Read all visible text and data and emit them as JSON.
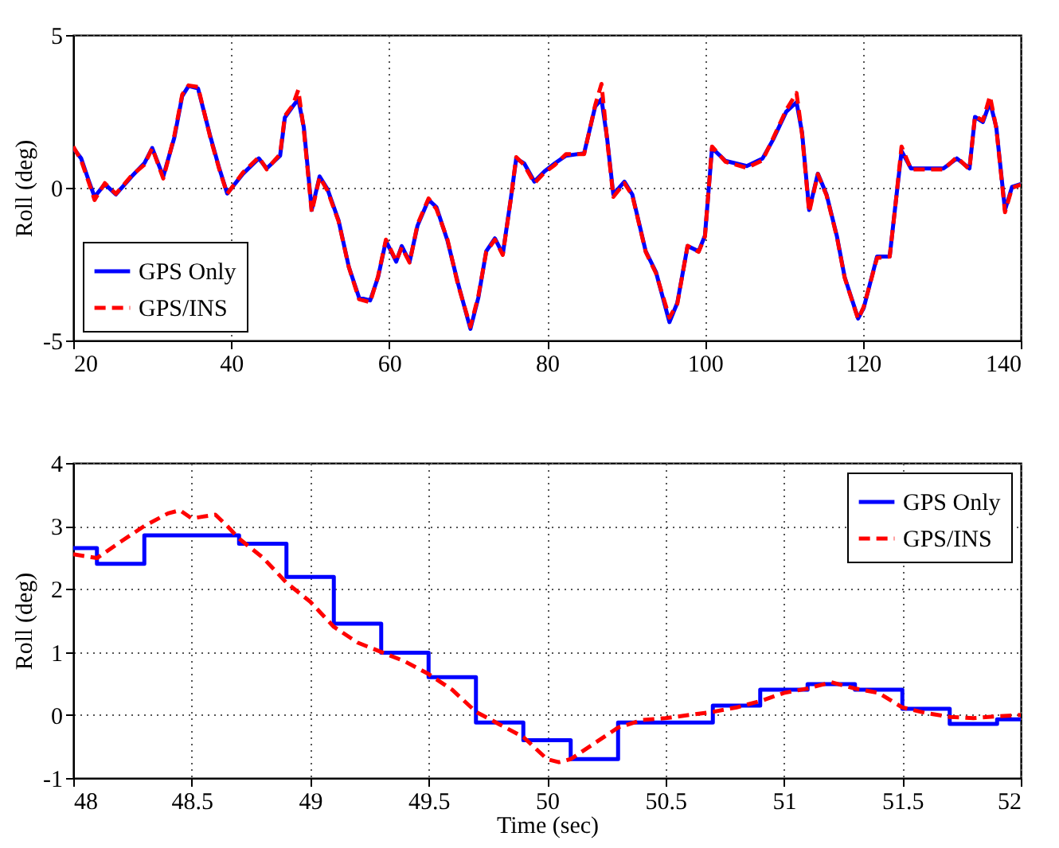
{
  "chart_data": [
    {
      "type": "line",
      "ylabel": "Roll (deg)",
      "xlim": [
        20,
        140
      ],
      "xticks": [
        20,
        40,
        60,
        80,
        100,
        120,
        140
      ],
      "ylim": [
        -5,
        5
      ],
      "yticks": [
        -5,
        0,
        5
      ],
      "grid": true,
      "legend": "bottom left",
      "x": [
        20,
        21,
        22,
        22.7,
        24,
        25.4,
        27.4,
        29,
        30,
        31.4,
        32.8,
        33.8,
        34.6,
        35.8,
        37.4,
        38.5,
        39.5,
        41.5,
        43.5,
        44.5,
        46.2,
        46.8,
        47.8,
        48.5,
        49.2,
        50.2,
        51.2,
        52.2,
        53.6,
        54.9,
        56.2,
        57.6,
        58.6,
        59.6,
        60.9,
        61.6,
        62.6,
        63.6,
        65,
        66,
        67.4,
        68.7,
        70.3,
        71.3,
        72.3,
        73.4,
        74.4,
        75.4,
        76.1,
        77.1,
        78.4,
        79.7,
        81,
        82.4,
        84.7,
        86.1,
        86.9,
        87.6,
        88.4,
        89.8,
        90.8,
        92.5,
        93.8,
        95.5,
        96.5,
        97.8,
        99.2,
        100,
        100.9,
        102.6,
        105.3,
        107.3,
        108.6,
        110.3,
        111.6,
        112.3,
        113.2,
        114.3,
        115.4,
        116.7,
        117.7,
        119.4,
        120.1,
        121.8,
        123.4,
        124.2,
        124.9,
        126.1,
        128.1,
        130.2,
        131.9,
        133.5,
        134.2,
        135.2,
        136.1,
        136.9,
        138,
        138.9,
        140
      ],
      "series": [
        {
          "name": "GPS Only",
          "color": "#0000ff",
          "line_style": "solid",
          "values": [
            1.3,
            0.96,
            0.2,
            -0.3,
            0.12,
            -0.22,
            0.37,
            0.8,
            1.3,
            0.37,
            1.64,
            3.0,
            3.33,
            3.25,
            1.64,
            0.63,
            -0.19,
            0.46,
            0.96,
            0.63,
            1.05,
            2.3,
            2.66,
            2.9,
            1.98,
            -0.73,
            0.37,
            -0.05,
            -1.07,
            -2.59,
            -3.6,
            -3.69,
            -2.93,
            -1.74,
            -2.42,
            -1.91,
            -2.42,
            -1.24,
            -0.39,
            -0.64,
            -1.74,
            -3.1,
            -4.62,
            -3.6,
            -2.08,
            -1.66,
            -2.17,
            -0.39,
            0.96,
            0.8,
            0.2,
            0.54,
            0.8,
            1.05,
            1.13,
            2.66,
            2.9,
            1.64,
            -0.22,
            0.2,
            -0.22,
            -2.08,
            -2.76,
            -4.4,
            -3.77,
            -1.91,
            -2.08,
            -1.57,
            1.3,
            0.88,
            0.71,
            0.96,
            1.56,
            2.49,
            2.8,
            1.81,
            -0.73,
            0.46,
            -0.22,
            -1.57,
            -2.93,
            -4.28,
            -3.94,
            -2.25,
            -2.25,
            -0.39,
            1.2,
            0.63,
            0.63,
            0.63,
            0.96,
            0.63,
            2.32,
            2.15,
            2.8,
            1.98,
            -0.73,
            0.03,
            0.12
          ]
        },
        {
          "name": "GPS/INS",
          "color": "#ff0000",
          "line_style": "dashed",
          "values": [
            1.35,
            0.9,
            0.15,
            -0.4,
            0.15,
            -0.2,
            0.4,
            0.75,
            1.3,
            0.3,
            1.7,
            3.05,
            3.35,
            3.3,
            1.6,
            0.6,
            -0.2,
            0.5,
            1.0,
            0.6,
            1.1,
            2.35,
            2.7,
            3.2,
            1.9,
            -0.8,
            0.35,
            -0.1,
            -1.1,
            -2.6,
            -3.65,
            -3.75,
            -2.9,
            -1.7,
            -2.4,
            -1.95,
            -2.45,
            -1.2,
            -0.35,
            -0.7,
            -1.7,
            -3.15,
            -4.55,
            -3.55,
            -2.1,
            -1.7,
            -2.2,
            -0.4,
            1.0,
            0.75,
            0.15,
            0.5,
            0.75,
            1.1,
            1.1,
            2.7,
            3.4,
            1.6,
            -0.3,
            0.15,
            -0.25,
            -2.1,
            -2.8,
            -4.25,
            -3.8,
            -1.9,
            -2.1,
            -1.6,
            1.35,
            0.85,
            0.65,
            0.9,
            1.6,
            2.55,
            3.1,
            1.75,
            -0.8,
            0.45,
            -0.25,
            -1.6,
            -2.95,
            -4.3,
            -3.9,
            -2.3,
            -2.25,
            -0.4,
            1.35,
            0.6,
            0.6,
            0.6,
            1.0,
            0.6,
            2.35,
            2.2,
            3.0,
            1.95,
            -0.8,
            0.0,
            0.1
          ]
        }
      ]
    },
    {
      "type": "line",
      "xlabel": "Time (sec)",
      "ylabel": "Roll (deg)",
      "xlim": [
        48,
        52
      ],
      "xticks": [
        48,
        48.5,
        49,
        49.5,
        50,
        50.5,
        51,
        51.5,
        52
      ],
      "ylim": [
        -1,
        4
      ],
      "yticks": [
        -1,
        0,
        1,
        2,
        3,
        4
      ],
      "grid": true,
      "legend": "top right",
      "series": [
        {
          "name": "GPS Only",
          "type": "step",
          "color": "#0000ff",
          "line_style": "solid",
          "x": [
            48,
            48.1,
            48.3,
            48.7,
            48.9,
            49.1,
            49.3,
            49.5,
            49.7,
            49.9,
            50.1,
            50.3,
            50.7,
            50.9,
            51.1,
            51.3,
            51.5,
            51.7,
            51.9,
            52
          ],
          "values": [
            2.65,
            2.4,
            2.85,
            2.72,
            2.19,
            1.45,
            0.99,
            0.6,
            -0.12,
            -0.4,
            -0.7,
            -0.12,
            0.15,
            0.4,
            0.49,
            0.4,
            0.1,
            -0.14,
            -0.07,
            -0.07
          ]
        },
        {
          "name": "GPS/INS",
          "type": "line",
          "color": "#ff0000",
          "line_style": "dashed",
          "x": [
            48,
            48.1,
            48.2,
            48.3,
            48.4,
            48.45,
            48.5,
            48.6,
            48.65,
            48.7,
            48.8,
            48.9,
            49,
            49.1,
            49.2,
            49.3,
            49.4,
            49.5,
            49.6,
            49.7,
            49.8,
            49.9,
            50,
            50.05,
            50.1,
            50.2,
            50.3,
            50.4,
            50.5,
            50.6,
            50.7,
            50.8,
            50.9,
            51,
            51.1,
            51.2,
            51.3,
            51.4,
            51.5,
            51.6,
            51.7,
            51.8,
            51.9,
            52
          ],
          "values": [
            2.55,
            2.49,
            2.75,
            3.0,
            3.2,
            3.25,
            3.12,
            3.18,
            3.0,
            2.8,
            2.5,
            2.1,
            1.8,
            1.4,
            1.15,
            1.0,
            0.85,
            0.65,
            0.4,
            0.05,
            -0.15,
            -0.35,
            -0.7,
            -0.75,
            -0.7,
            -0.45,
            -0.2,
            -0.08,
            -0.05,
            0.0,
            0.05,
            0.12,
            0.22,
            0.35,
            0.42,
            0.52,
            0.42,
            0.35,
            0.12,
            0.03,
            -0.03,
            -0.05,
            -0.02,
            0.0
          ]
        }
      ]
    }
  ]
}
